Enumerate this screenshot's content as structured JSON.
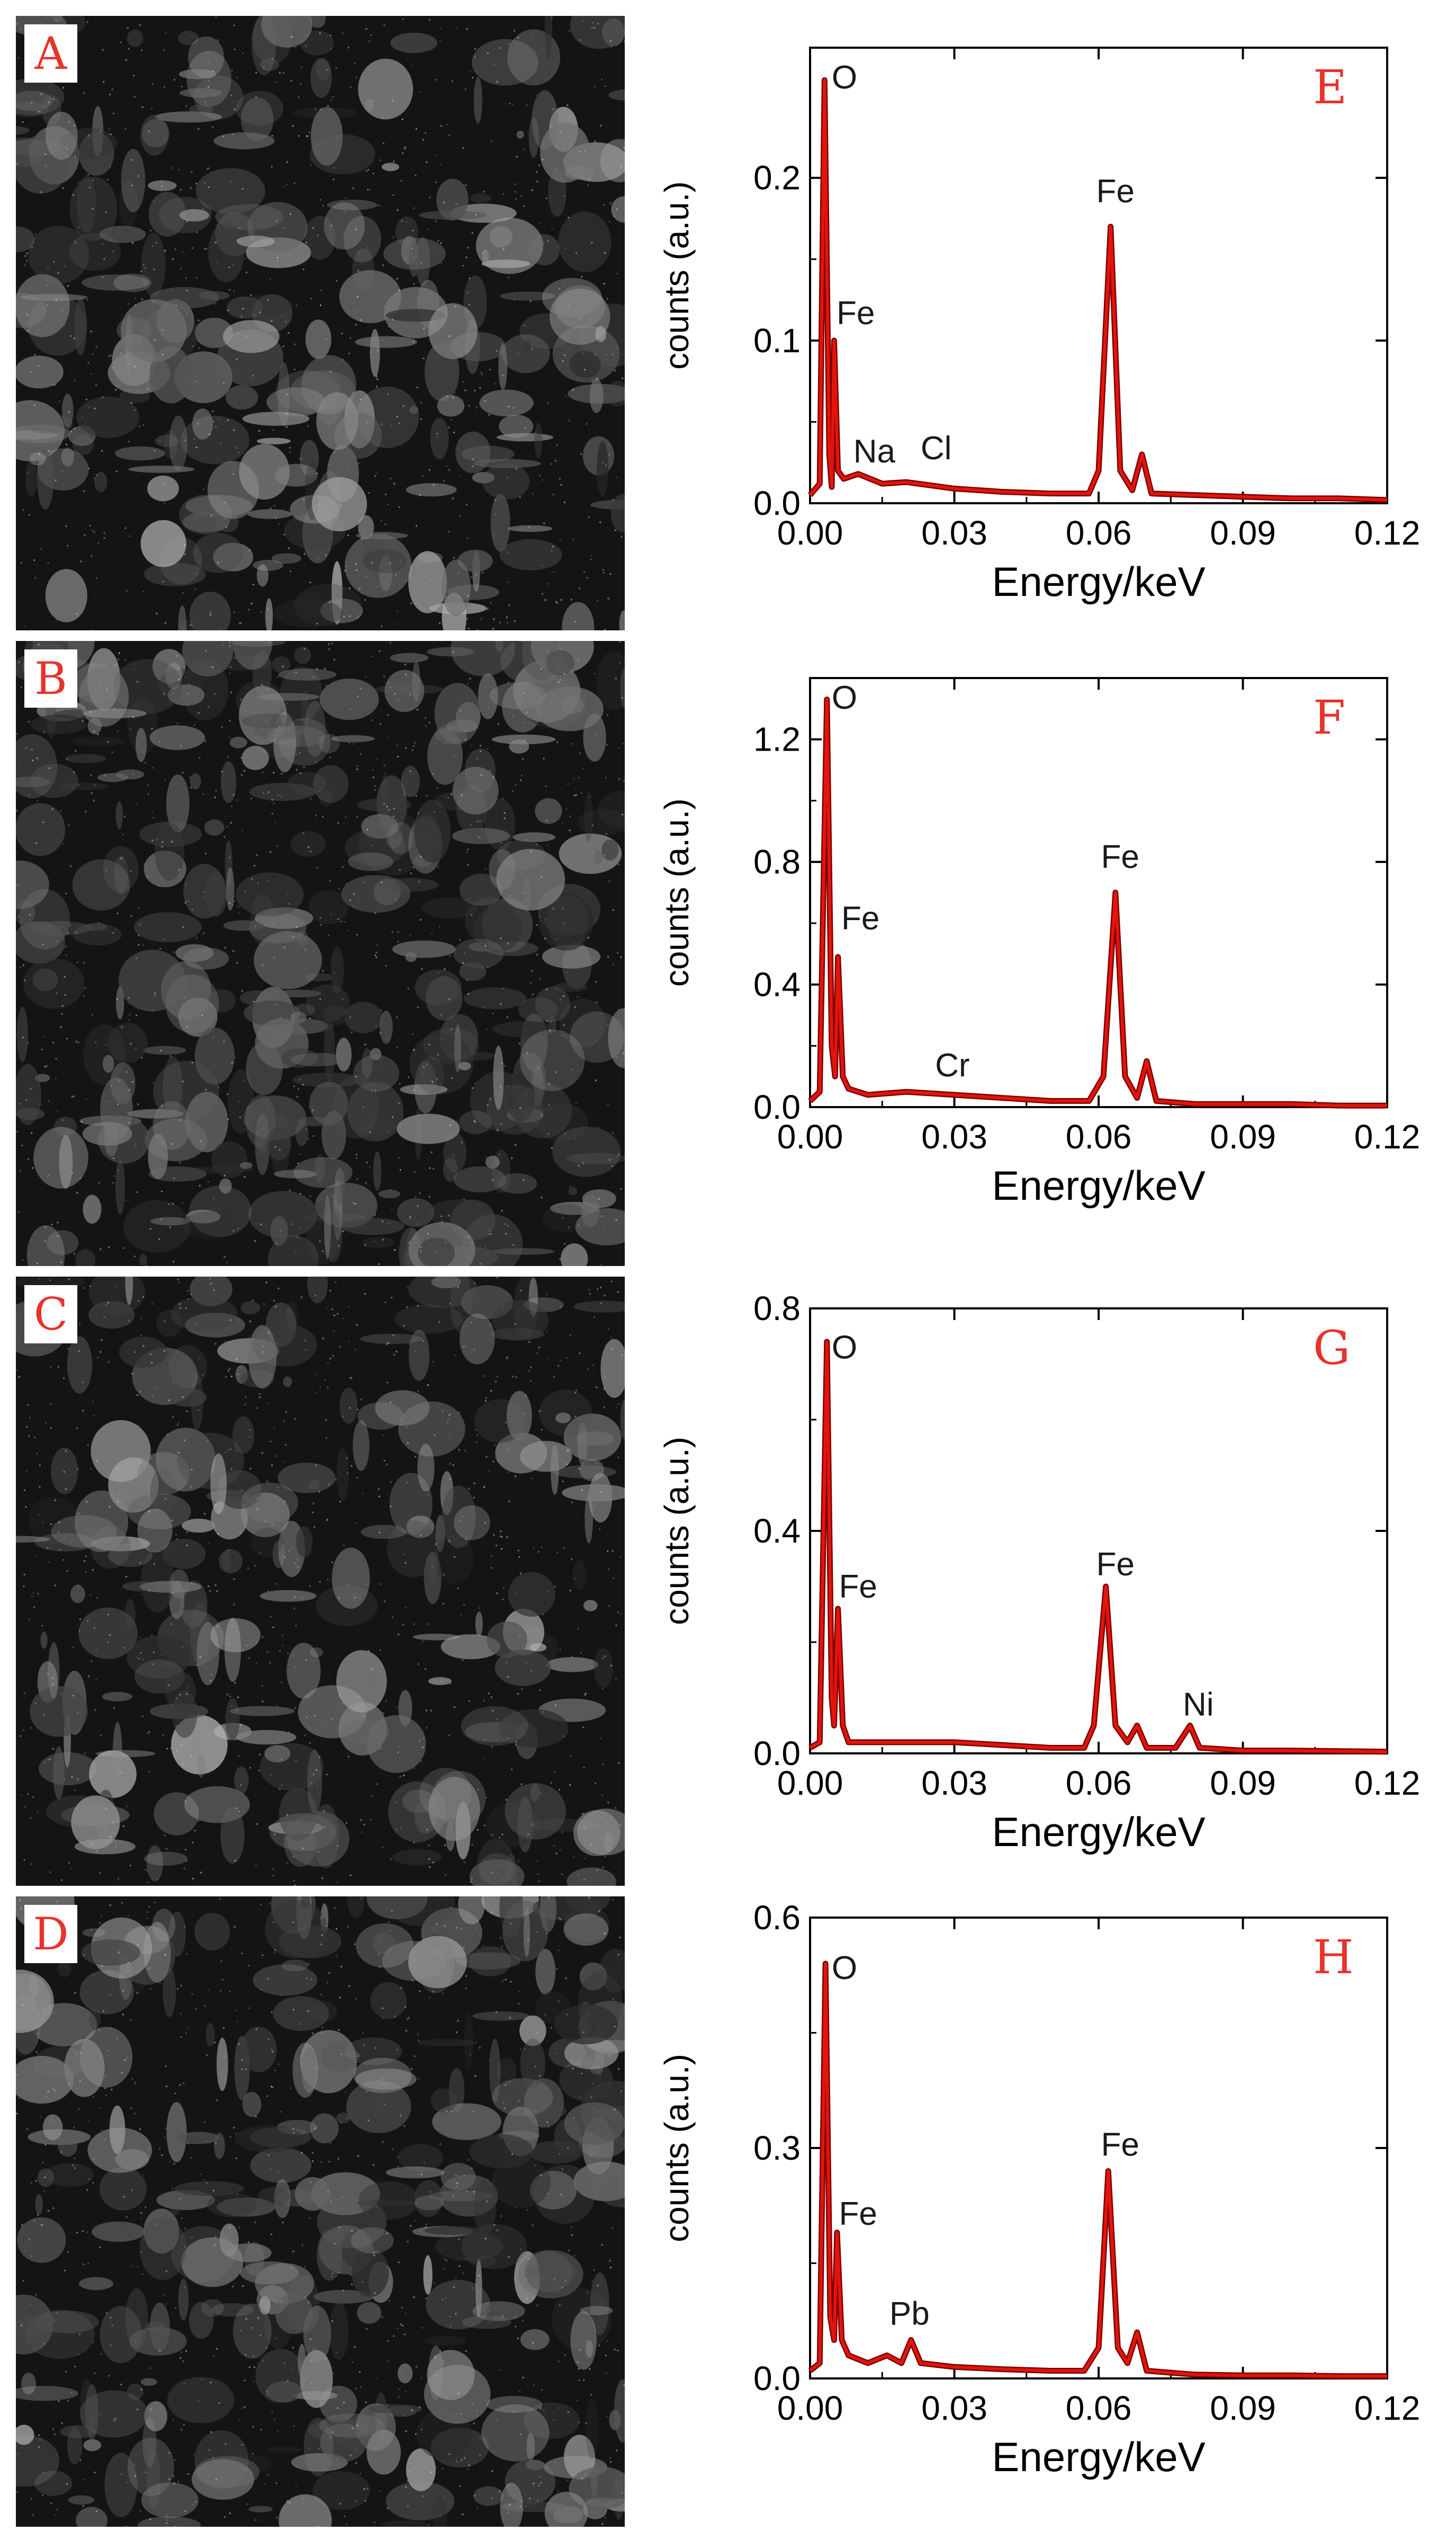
{
  "colors": {
    "spectrum": "#e2140c",
    "peak_outline": "#7a0000",
    "panel_letter": "#e8322a",
    "axis": "#000000"
  },
  "sem_panels": [
    {
      "letter": "A",
      "footer": ""
    },
    {
      "letter": "B",
      "footer": ""
    },
    {
      "letter": "C",
      "footer": ""
    },
    {
      "letter": "D",
      "footer": ""
    }
  ],
  "chart_data": [
    {
      "type": "line",
      "panel": "E",
      "xlabel": "Energy/keV",
      "ylabel": "counts (a.u.)",
      "xlim": [
        0,
        0.12
      ],
      "ylim": [
        0,
        0.28
      ],
      "xticks": [
        0.0,
        0.03,
        0.06,
        0.09,
        0.12
      ],
      "yticks": [
        0.0,
        0.1,
        0.2
      ],
      "series": [
        {
          "points": [
            [
              0.0,
              0.005
            ],
            [
              0.002,
              0.012
            ],
            [
              0.003,
              0.26
            ],
            [
              0.004,
              0.03
            ],
            [
              0.0045,
              0.01
            ],
            [
              0.005,
              0.1
            ],
            [
              0.0058,
              0.02
            ],
            [
              0.007,
              0.015
            ],
            [
              0.01,
              0.018
            ],
            [
              0.015,
              0.012
            ],
            [
              0.02,
              0.013
            ],
            [
              0.025,
              0.011
            ],
            [
              0.03,
              0.009
            ],
            [
              0.035,
              0.008
            ],
            [
              0.04,
              0.007
            ],
            [
              0.05,
              0.006
            ],
            [
              0.058,
              0.006
            ],
            [
              0.06,
              0.02
            ],
            [
              0.0625,
              0.17
            ],
            [
              0.0645,
              0.02
            ],
            [
              0.067,
              0.008
            ],
            [
              0.069,
              0.03
            ],
            [
              0.071,
              0.006
            ],
            [
              0.08,
              0.005
            ],
            [
              0.09,
              0.004
            ],
            [
              0.1,
              0.003
            ],
            [
              0.11,
              0.003
            ],
            [
              0.12,
              0.002
            ]
          ]
        }
      ],
      "annotations": [
        {
          "text": "O",
          "x": 0.0045,
          "y": 0.255
        },
        {
          "text": "Fe",
          "x": 0.0055,
          "y": 0.11
        },
        {
          "text": "Na",
          "x": 0.009,
          "y": 0.025
        },
        {
          "text": "Cl",
          "x": 0.023,
          "y": 0.027
        },
        {
          "text": "Fe",
          "x": 0.0595,
          "y": 0.185
        }
      ]
    },
    {
      "type": "line",
      "panel": "F",
      "xlabel": "Energy/keV",
      "ylabel": "counts (a.u.)",
      "xlim": [
        0,
        0.12
      ],
      "ylim": [
        0,
        1.4
      ],
      "xticks": [
        0.0,
        0.03,
        0.06,
        0.09,
        0.12
      ],
      "yticks": [
        0.0,
        0.4,
        0.8,
        1.2
      ],
      "series": [
        {
          "points": [
            [
              0.0,
              0.02
            ],
            [
              0.002,
              0.05
            ],
            [
              0.0035,
              1.33
            ],
            [
              0.0045,
              0.2
            ],
            [
              0.0052,
              0.1
            ],
            [
              0.0058,
              0.49
            ],
            [
              0.0068,
              0.1
            ],
            [
              0.008,
              0.06
            ],
            [
              0.012,
              0.04
            ],
            [
              0.02,
              0.05
            ],
            [
              0.03,
              0.04
            ],
            [
              0.04,
              0.03
            ],
            [
              0.05,
              0.02
            ],
            [
              0.058,
              0.02
            ],
            [
              0.061,
              0.1
            ],
            [
              0.0635,
              0.7
            ],
            [
              0.0655,
              0.1
            ],
            [
              0.068,
              0.03
            ],
            [
              0.07,
              0.15
            ],
            [
              0.072,
              0.02
            ],
            [
              0.08,
              0.01
            ],
            [
              0.09,
              0.01
            ],
            [
              0.1,
              0.01
            ],
            [
              0.11,
              0.005
            ],
            [
              0.12,
              0.005
            ]
          ]
        }
      ],
      "annotations": [
        {
          "text": "O",
          "x": 0.0045,
          "y": 1.3
        },
        {
          "text": "Fe",
          "x": 0.0065,
          "y": 0.58
        },
        {
          "text": "Cr",
          "x": 0.026,
          "y": 0.1
        },
        {
          "text": "Fe",
          "x": 0.0605,
          "y": 0.78
        }
      ]
    },
    {
      "type": "line",
      "panel": "G",
      "xlabel": "Energy/keV",
      "ylabel": "counts (a.u.)",
      "xlim": [
        0,
        0.12
      ],
      "ylim": [
        0,
        0.8
      ],
      "xticks": [
        0.0,
        0.03,
        0.06,
        0.09,
        0.12
      ],
      "yticks": [
        0.0,
        0.4,
        0.8
      ],
      "series": [
        {
          "points": [
            [
              0.0,
              0.01
            ],
            [
              0.002,
              0.02
            ],
            [
              0.0035,
              0.74
            ],
            [
              0.0045,
              0.1
            ],
            [
              0.005,
              0.05
            ],
            [
              0.0058,
              0.26
            ],
            [
              0.0068,
              0.05
            ],
            [
              0.008,
              0.02
            ],
            [
              0.012,
              0.02
            ],
            [
              0.02,
              0.02
            ],
            [
              0.03,
              0.02
            ],
            [
              0.04,
              0.015
            ],
            [
              0.05,
              0.01
            ],
            [
              0.057,
              0.01
            ],
            [
              0.059,
              0.05
            ],
            [
              0.0615,
              0.3
            ],
            [
              0.0635,
              0.05
            ],
            [
              0.066,
              0.02
            ],
            [
              0.068,
              0.05
            ],
            [
              0.07,
              0.01
            ],
            [
              0.076,
              0.01
            ],
            [
              0.079,
              0.05
            ],
            [
              0.081,
              0.01
            ],
            [
              0.09,
              0.005
            ],
            [
              0.1,
              0.005
            ],
            [
              0.11,
              0.004
            ],
            [
              0.12,
              0.003
            ]
          ]
        }
      ],
      "annotations": [
        {
          "text": "O",
          "x": 0.0045,
          "y": 0.71
        },
        {
          "text": "Fe",
          "x": 0.006,
          "y": 0.28
        },
        {
          "text": "Fe",
          "x": 0.0595,
          "y": 0.32
        },
        {
          "text": "Ni",
          "x": 0.0775,
          "y": 0.068
        }
      ]
    },
    {
      "type": "line",
      "panel": "H",
      "xlabel": "Energy/keV",
      "ylabel": "counts (a.u.)",
      "xlim": [
        0,
        0.12
      ],
      "ylim": [
        0,
        0.6
      ],
      "xticks": [
        0.0,
        0.03,
        0.06,
        0.09,
        0.12
      ],
      "yticks": [
        0.0,
        0.3,
        0.6
      ],
      "series": [
        {
          "points": [
            [
              0.0,
              0.01
            ],
            [
              0.002,
              0.02
            ],
            [
              0.0032,
              0.54
            ],
            [
              0.0042,
              0.08
            ],
            [
              0.005,
              0.05
            ],
            [
              0.0056,
              0.19
            ],
            [
              0.0066,
              0.05
            ],
            [
              0.008,
              0.03
            ],
            [
              0.012,
              0.02
            ],
            [
              0.016,
              0.03
            ],
            [
              0.019,
              0.02
            ],
            [
              0.021,
              0.05
            ],
            [
              0.023,
              0.02
            ],
            [
              0.03,
              0.015
            ],
            [
              0.04,
              0.012
            ],
            [
              0.05,
              0.01
            ],
            [
              0.057,
              0.01
            ],
            [
              0.06,
              0.04
            ],
            [
              0.062,
              0.27
            ],
            [
              0.064,
              0.04
            ],
            [
              0.066,
              0.02
            ],
            [
              0.068,
              0.06
            ],
            [
              0.07,
              0.01
            ],
            [
              0.08,
              0.005
            ],
            [
              0.09,
              0.004
            ],
            [
              0.1,
              0.004
            ],
            [
              0.11,
              0.003
            ],
            [
              0.12,
              0.003
            ]
          ]
        }
      ],
      "annotations": [
        {
          "text": "O",
          "x": 0.0045,
          "y": 0.52
        },
        {
          "text": "Fe",
          "x": 0.006,
          "y": 0.2
        },
        {
          "text": "Pb",
          "x": 0.0165,
          "y": 0.07
        },
        {
          "text": "Fe",
          "x": 0.0605,
          "y": 0.29
        }
      ]
    }
  ]
}
